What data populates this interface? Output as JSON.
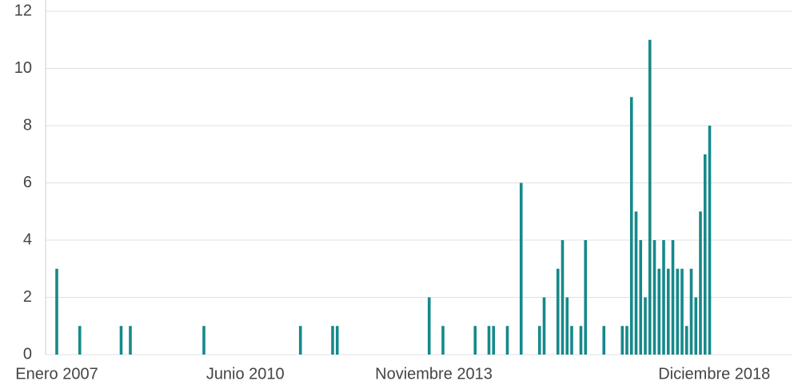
{
  "chart_data": {
    "type": "bar",
    "color": "#16898a",
    "grid": true,
    "ylim": [
      0,
      12
    ],
    "yticks": [
      0,
      2,
      4,
      6,
      8,
      10,
      12
    ],
    "categories": [
      "Enero 2007",
      null,
      null,
      null,
      null,
      null,
      null,
      null,
      null,
      null,
      null,
      null,
      null,
      null,
      null,
      null,
      null,
      null,
      null,
      null,
      null,
      null,
      null,
      null,
      null,
      null,
      null,
      null,
      null,
      null,
      null,
      null,
      null,
      null,
      null,
      null,
      null,
      null,
      null,
      null,
      null,
      "Junio 2010",
      null,
      null,
      null,
      null,
      null,
      null,
      null,
      null,
      null,
      null,
      null,
      null,
      null,
      null,
      null,
      null,
      null,
      null,
      null,
      null,
      null,
      null,
      null,
      null,
      null,
      null,
      null,
      null,
      null,
      null,
      null,
      null,
      null,
      null,
      null,
      null,
      null,
      null,
      null,
      null,
      "Noviembre 2013",
      null,
      null,
      null,
      null,
      null,
      null,
      null,
      null,
      null,
      null,
      null,
      null,
      null,
      null,
      null,
      null,
      null,
      null,
      null,
      null,
      null,
      null,
      null,
      null,
      null,
      null,
      null,
      null,
      null,
      null,
      null,
      null,
      null,
      null,
      null,
      null,
      null,
      null,
      null,
      null,
      null,
      null,
      null,
      null,
      null,
      null,
      null,
      null,
      null,
      null,
      null,
      null,
      null,
      null,
      null,
      null,
      null,
      null,
      null,
      null,
      "Diciembre 2018",
      null,
      null,
      null,
      null,
      null,
      null,
      null,
      null,
      null,
      null,
      null,
      null,
      null,
      null,
      null,
      null
    ],
    "values": [
      3,
      0,
      0,
      0,
      0,
      1,
      0,
      0,
      0,
      0,
      0,
      0,
      0,
      0,
      1,
      0,
      1,
      0,
      0,
      0,
      0,
      0,
      0,
      0,
      0,
      0,
      0,
      0,
      0,
      0,
      0,
      0,
      1,
      0,
      0,
      0,
      0,
      0,
      0,
      0,
      0,
      0,
      0,
      0,
      0,
      0,
      0,
      0,
      0,
      0,
      0,
      0,
      0,
      1,
      0,
      0,
      0,
      0,
      0,
      0,
      1,
      1,
      0,
      0,
      0,
      0,
      0,
      0,
      0,
      0,
      0,
      0,
      0,
      0,
      0,
      0,
      0,
      0,
      0,
      0,
      0,
      2,
      0,
      0,
      1,
      0,
      0,
      0,
      0,
      0,
      0,
      1,
      0,
      0,
      1,
      1,
      0,
      0,
      1,
      0,
      0,
      6,
      0,
      0,
      0,
      1,
      2,
      0,
      0,
      3,
      4,
      2,
      1,
      0,
      1,
      4,
      0,
      0,
      0,
      1,
      0,
      0,
      0,
      1,
      1,
      9,
      5,
      4,
      2,
      11,
      4,
      3,
      4,
      3,
      4,
      3,
      3,
      1,
      3,
      2,
      5,
      7,
      8,
      0,
      0,
      0,
      0,
      0,
      0,
      0,
      0,
      0,
      0,
      0,
      0,
      0,
      0,
      0,
      0,
      0
    ]
  }
}
